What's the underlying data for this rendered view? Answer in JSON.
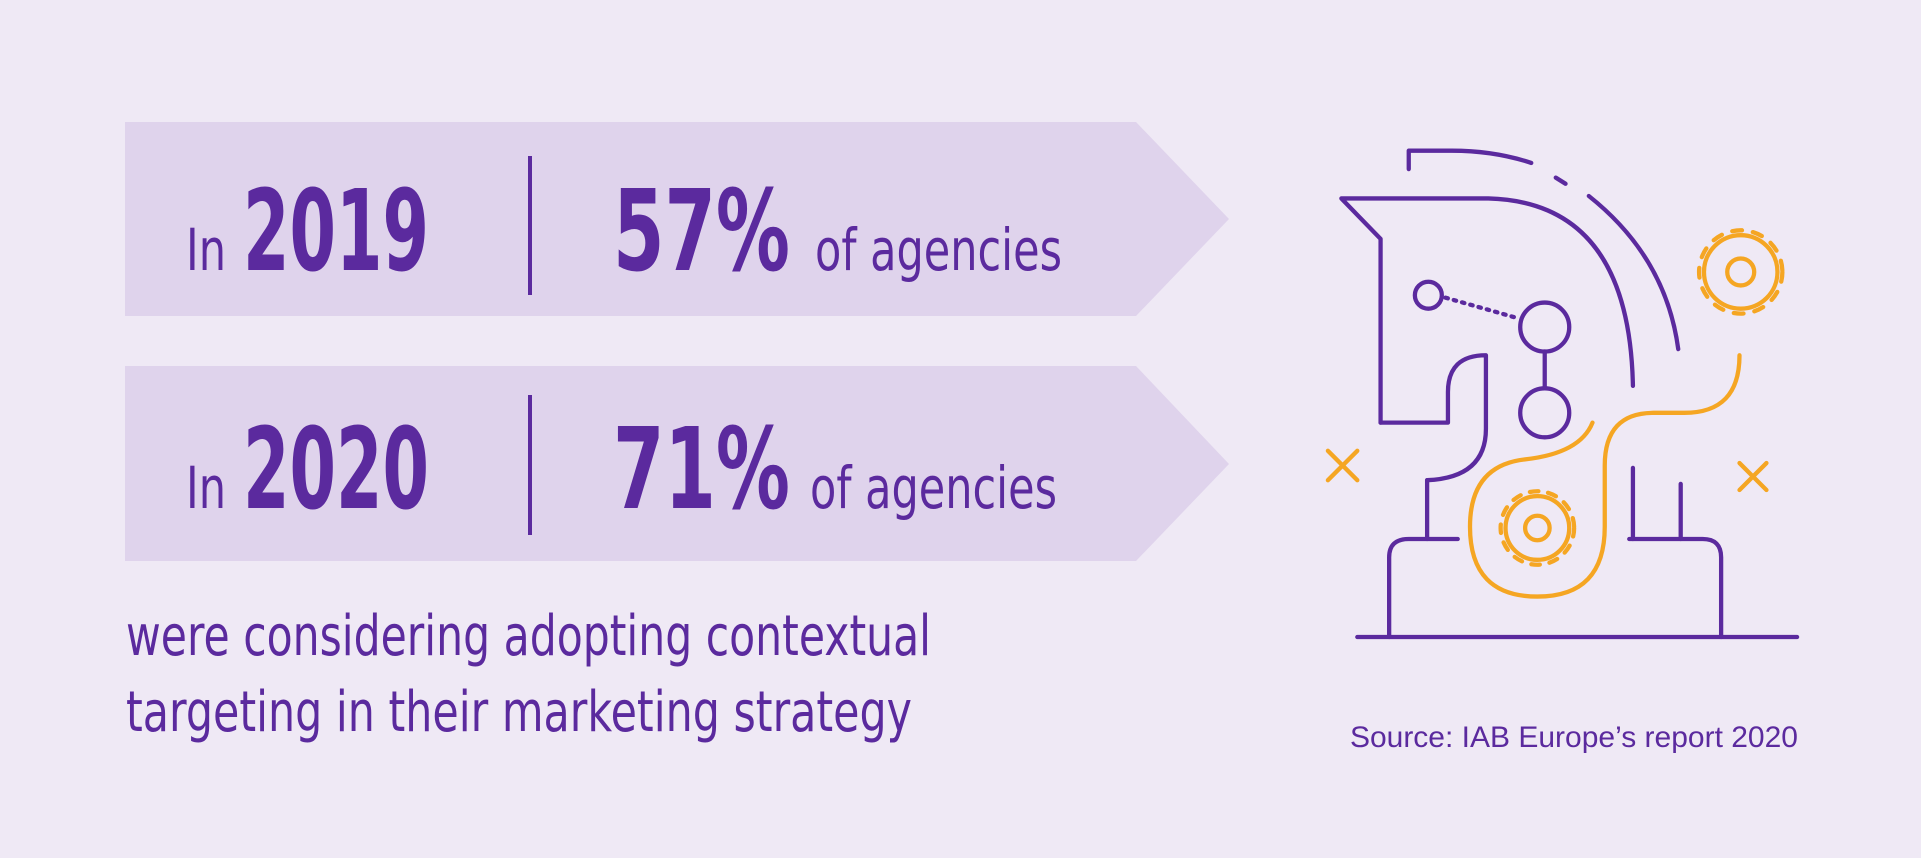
{
  "rows": [
    {
      "prefix": "In",
      "year": "2019",
      "percent": "57%",
      "suffix": "of agencies"
    },
    {
      "prefix": "In",
      "year": "2020",
      "percent": "71%",
      "suffix": "of agencies"
    }
  ],
  "caption": [
    "were considering adopting contextual",
    "targeting in their marketing strategy"
  ],
  "source": "Source: IAB Europe’s report 2020"
}
